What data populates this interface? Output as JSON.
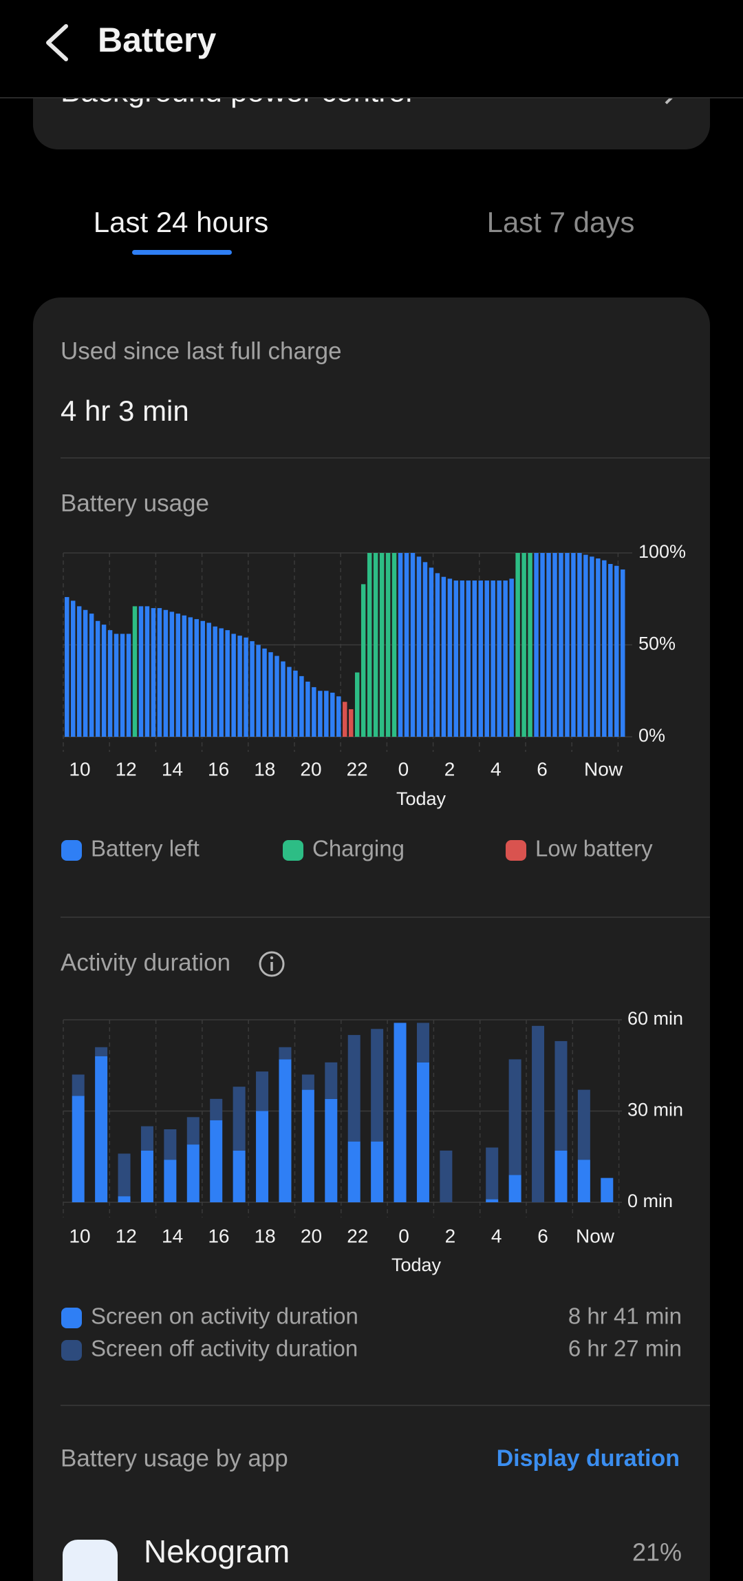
{
  "header": {
    "title": "Battery"
  },
  "partial_item": {
    "title": "Background power control"
  },
  "tabs": [
    "Last 24 hours",
    "Last 7 days"
  ],
  "summary": {
    "label": "Used since last full charge",
    "value": "4 hr 3 min"
  },
  "chart_data": [
    {
      "type": "bar",
      "title": "Battery usage",
      "x_labels": [
        "10",
        "12",
        "14",
        "16",
        "18",
        "20",
        "22",
        "0",
        "2",
        "4",
        "6",
        "Now"
      ],
      "x_sublabel": "Today",
      "ylim": [
        0,
        100
      ],
      "yticks": [
        {
          "value": 0,
          "label": "0%"
        },
        {
          "value": 50,
          "label": "50%"
        },
        {
          "value": 100,
          "label": "100%"
        }
      ],
      "grid": true,
      "series": [
        {
          "name": "Battery left",
          "color": "#2f7ff5",
          "values": [
            76,
            74,
            71,
            69,
            67,
            63,
            61,
            58,
            56,
            56,
            56,
            null,
            71,
            71,
            70,
            70,
            69,
            68,
            67,
            66,
            65,
            64,
            63,
            62,
            60,
            59,
            58,
            56,
            55,
            54,
            52,
            50,
            48,
            46,
            44,
            41,
            38,
            36,
            33,
            30,
            27,
            25,
            25,
            24,
            22,
            null,
            null,
            null,
            null,
            null,
            null,
            null,
            null,
            null,
            100,
            100,
            100,
            98,
            95,
            92,
            89,
            87,
            86,
            85,
            85,
            85,
            85,
            85,
            85,
            85,
            85,
            85,
            86,
            null,
            null,
            null,
            100,
            100,
            100,
            100,
            100,
            100,
            100,
            100,
            99,
            98,
            97,
            96,
            94,
            93,
            91
          ]
        },
        {
          "name": "Charging",
          "color": "#2dbd85",
          "values": [
            null,
            null,
            null,
            null,
            null,
            null,
            null,
            null,
            null,
            null,
            null,
            71,
            null,
            null,
            null,
            null,
            null,
            null,
            null,
            null,
            null,
            null,
            null,
            null,
            null,
            null,
            null,
            null,
            null,
            null,
            null,
            null,
            null,
            null,
            null,
            null,
            null,
            null,
            null,
            null,
            null,
            null,
            null,
            null,
            null,
            null,
            null,
            35,
            83,
            100,
            100,
            100,
            100,
            100,
            null,
            null,
            null,
            null,
            null,
            null,
            null,
            null,
            null,
            null,
            null,
            null,
            null,
            null,
            null,
            null,
            null,
            null,
            null,
            100,
            100,
            100,
            null,
            null,
            null,
            null,
            null,
            null,
            null,
            null,
            null,
            null,
            null,
            null,
            null,
            null,
            null
          ]
        },
        {
          "name": "Low battery",
          "color": "#d9534f",
          "values": [
            null,
            null,
            null,
            null,
            null,
            null,
            null,
            null,
            null,
            null,
            null,
            null,
            null,
            null,
            null,
            null,
            null,
            null,
            null,
            null,
            null,
            null,
            null,
            null,
            null,
            null,
            null,
            null,
            null,
            null,
            null,
            null,
            null,
            null,
            null,
            null,
            null,
            null,
            null,
            null,
            null,
            null,
            null,
            null,
            null,
            19,
            15,
            null,
            null,
            null,
            null,
            null,
            null,
            null,
            null,
            null,
            null,
            null,
            null,
            null,
            null,
            null,
            null,
            null,
            null,
            null,
            null,
            null,
            null,
            null,
            null,
            null,
            null,
            null,
            null,
            null,
            null,
            null,
            null,
            null,
            null,
            null,
            null,
            null,
            null,
            null,
            null,
            null,
            null,
            null,
            null
          ]
        }
      ]
    },
    {
      "type": "stacked_bar",
      "title": "Activity duration",
      "x_labels": [
        "10",
        "12",
        "14",
        "16",
        "18",
        "20",
        "22",
        "0",
        "2",
        "4",
        "6",
        "Now"
      ],
      "x_sublabel": "Today",
      "ylim": [
        0,
        60
      ],
      "yticks": [
        {
          "value": 0,
          "label": "0 min"
        },
        {
          "value": 30,
          "label": "30 min"
        },
        {
          "value": 60,
          "label": "60 min"
        }
      ],
      "grid": true,
      "series": [
        {
          "name": "Screen on activity duration",
          "total": "8 hr 41 min",
          "color": "#2f7ff5",
          "values": [
            35,
            48,
            2,
            17,
            14,
            19,
            27,
            17,
            30,
            47,
            37,
            34,
            20,
            20,
            59,
            46,
            0,
            0,
            1,
            9,
            0,
            17,
            14,
            8
          ]
        },
        {
          "name": "Screen off activity duration",
          "total": "6 hr 27 min",
          "color": "#2d4b7d",
          "values": [
            7,
            3,
            14,
            8,
            10,
            9,
            7,
            21,
            13,
            4,
            5,
            12,
            35,
            37,
            0,
            13,
            17,
            0,
            17,
            38,
            58,
            36,
            23,
            0
          ]
        }
      ]
    }
  ],
  "app_usage": {
    "title": "Battery usage by app",
    "action": "Display duration",
    "apps": [
      {
        "name": "Nekogram",
        "share": "21%"
      }
    ]
  }
}
